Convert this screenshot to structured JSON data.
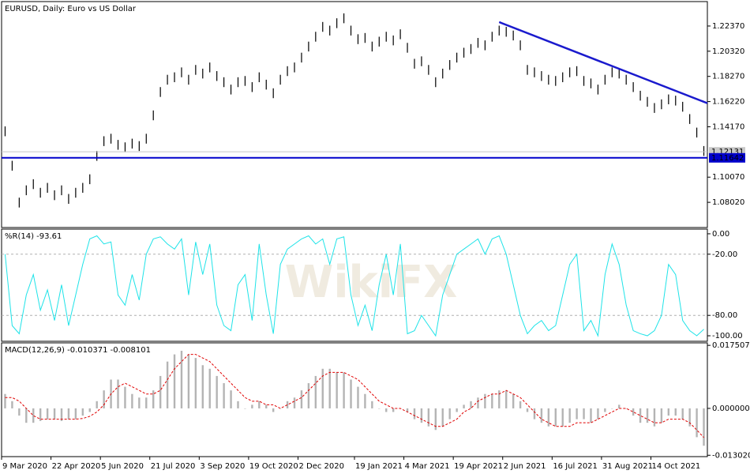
{
  "chart_data": [
    {
      "type": "ohlc",
      "title": "EURUSD, Daily: Euro vs US Dollar",
      "color": "#000000",
      "high": [
        1.142,
        1.114,
        1.084,
        1.094,
        1.099,
        1.092,
        1.096,
        1.09,
        1.094,
        1.087,
        1.092,
        1.096,
        1.103,
        1.122,
        1.134,
        1.136,
        1.131,
        1.129,
        1.132,
        1.13,
        1.136,
        1.155,
        1.174,
        1.184,
        1.186,
        1.19,
        1.184,
        1.192,
        1.189,
        1.194,
        1.187,
        1.182,
        1.176,
        1.182,
        1.183,
        1.178,
        1.186,
        1.18,
        1.173,
        1.184,
        1.191,
        1.194,
        1.202,
        1.211,
        1.219,
        1.227,
        1.224,
        1.23,
        1.234,
        1.224,
        1.217,
        1.218,
        1.211,
        1.215,
        1.219,
        1.216,
        1.221,
        1.21,
        1.197,
        1.199,
        1.192,
        1.182,
        1.189,
        1.196,
        1.202,
        1.206,
        1.209,
        1.214,
        1.212,
        1.219,
        1.224,
        1.223,
        1.22,
        1.212,
        1.192,
        1.19,
        1.187,
        1.184,
        1.183,
        1.186,
        1.19,
        1.191,
        1.183,
        1.181,
        1.176,
        1.184,
        1.19,
        1.189,
        1.184,
        1.178,
        1.171,
        1.166,
        1.161,
        1.164,
        1.168,
        1.167,
        1.162,
        1.152,
        1.141,
        1.126
      ],
      "low": [
        1.134,
        1.106,
        1.076,
        1.086,
        1.091,
        1.084,
        1.088,
        1.082,
        1.086,
        1.079,
        1.084,
        1.088,
        1.095,
        1.114,
        1.126,
        1.128,
        1.123,
        1.121,
        1.124,
        1.122,
        1.128,
        1.147,
        1.166,
        1.176,
        1.178,
        1.182,
        1.176,
        1.184,
        1.181,
        1.186,
        1.179,
        1.174,
        1.168,
        1.174,
        1.175,
        1.17,
        1.178,
        1.172,
        1.165,
        1.176,
        1.183,
        1.186,
        1.194,
        1.203,
        1.211,
        1.219,
        1.216,
        1.222,
        1.226,
        1.216,
        1.209,
        1.21,
        1.203,
        1.207,
        1.211,
        1.208,
        1.213,
        1.202,
        1.189,
        1.191,
        1.184,
        1.174,
        1.181,
        1.188,
        1.194,
        1.198,
        1.201,
        1.206,
        1.204,
        1.211,
        1.216,
        1.215,
        1.212,
        1.204,
        1.184,
        1.182,
        1.179,
        1.176,
        1.175,
        1.178,
        1.182,
        1.183,
        1.175,
        1.173,
        1.168,
        1.176,
        1.182,
        1.181,
        1.176,
        1.17,
        1.163,
        1.158,
        1.153,
        1.156,
        1.16,
        1.159,
        1.154,
        1.144,
        1.133,
        1.118
      ],
      "ylim": [
        1.0597,
        1.2436
      ],
      "yticks": [
        {
          "value": 1.2237,
          "label": "1.22370"
        },
        {
          "value": 1.2032,
          "label": "1.20320"
        },
        {
          "value": 1.1827,
          "label": "1.18270"
        },
        {
          "value": 1.1622,
          "label": "1.16220"
        },
        {
          "value": 1.1417,
          "label": "1.14170"
        },
        {
          "value": 1.1007,
          "label": "1.10070"
        },
        {
          "value": 1.0802,
          "label": "1.08020"
        }
      ],
      "lines": [
        {
          "value": 1.12131,
          "label": "1.12131",
          "color": "#c8c8c8"
        },
        {
          "value": 1.11642,
          "label": "1.11642",
          "color": "#0000cc"
        }
      ],
      "trendline": {
        "start": 70,
        "end": 99,
        "values": [
          1.2269,
          1.1609
        ],
        "color": "#1a1acd"
      }
    },
    {
      "type": "line",
      "title": "%R(14) -93.61",
      "color": "#1ee3e8",
      "watermark": "WikiFX",
      "values": [
        -20,
        -90,
        -98,
        -60,
        -40,
        -75,
        -55,
        -85,
        -50,
        -90,
        -60,
        -30,
        -5,
        -2,
        -10,
        -8,
        -60,
        -70,
        -40,
        -65,
        -20,
        -5,
        -3,
        -10,
        -15,
        -5,
        -60,
        -8,
        -40,
        -10,
        -70,
        -90,
        -95,
        -50,
        -40,
        -85,
        -10,
        -60,
        -98,
        -30,
        -15,
        -10,
        -5,
        -2,
        -10,
        -5,
        -30,
        -5,
        -3,
        -60,
        -90,
        -70,
        -95,
        -50,
        -20,
        -60,
        -10,
        -98,
        -95,
        -80,
        -90,
        -100,
        -60,
        -40,
        -20,
        -15,
        -10,
        -5,
        -20,
        -5,
        -2,
        -20,
        -50,
        -80,
        -98,
        -90,
        -85,
        -95,
        -90,
        -60,
        -30,
        -20,
        -95,
        -85,
        -100,
        -40,
        -10,
        -30,
        -70,
        -95,
        -98,
        -100,
        -95,
        -80,
        -30,
        -40,
        -85,
        -95,
        -100,
        -93.61
      ],
      "ylim": [
        -105.4,
        4.6
      ],
      "yticks": [
        {
          "value": 0,
          "label": "0.00"
        },
        {
          "value": -20,
          "label": "-20.00"
        },
        {
          "value": -80,
          "label": "-80.00"
        },
        {
          "value": -100,
          "label": "-100.00"
        }
      ],
      "levels": [
        -20,
        -80
      ]
    },
    {
      "type": "macd",
      "title": "MACD(12,26,9) -0.010371 -0.008101",
      "histogram": {
        "color": "#b4b4b4",
        "values": [
          0.004,
          0.002,
          -0.002,
          -0.004,
          -0.004,
          -0.0035,
          -0.003,
          -0.003,
          -0.0035,
          -0.003,
          -0.003,
          -0.002,
          -0.001,
          0.002,
          0.005,
          0.008,
          0.008,
          0.006,
          0.004,
          0.003,
          0.003,
          0.005,
          0.009,
          0.013,
          0.015,
          0.016,
          0.015,
          0.014,
          0.012,
          0.011,
          0.009,
          0.007,
          0.005,
          0.002,
          0.0,
          0.001,
          0.002,
          0.001,
          -0.001,
          0.0,
          0.002,
          0.003,
          0.005,
          0.007,
          0.009,
          0.011,
          0.011,
          0.01,
          0.01,
          0.008,
          0.006,
          0.004,
          0.002,
          0.0,
          -0.001,
          -0.001,
          0.0,
          -0.001,
          -0.003,
          -0.004,
          -0.005,
          -0.006,
          -0.005,
          -0.003,
          -0.001,
          0.001,
          0.002,
          0.003,
          0.004,
          0.004,
          0.005,
          0.005,
          0.004,
          0.002,
          -0.001,
          -0.003,
          -0.004,
          -0.005,
          -0.005,
          -0.005,
          -0.004,
          -0.003,
          -0.003,
          -0.004,
          -0.003,
          -0.001,
          0.0,
          0.001,
          0.0,
          -0.002,
          -0.004,
          -0.004,
          -0.005,
          -0.004,
          -0.002,
          -0.002,
          -0.003,
          -0.005,
          -0.008,
          -0.010371
        ]
      },
      "signal": {
        "color": "#e00000",
        "values": [
          0.003,
          0.003,
          0.002,
          0.0,
          -0.002,
          -0.003,
          -0.003,
          -0.003,
          -0.003,
          -0.003,
          -0.003,
          -0.0028,
          -0.0022,
          -0.001,
          0.001,
          0.004,
          0.006,
          0.007,
          0.006,
          0.005,
          0.004,
          0.004,
          0.005,
          0.008,
          0.011,
          0.013,
          0.015,
          0.015,
          0.014,
          0.013,
          0.011,
          0.009,
          0.007,
          0.005,
          0.003,
          0.002,
          0.002,
          0.001,
          0.001,
          0.0,
          0.001,
          0.002,
          0.003,
          0.005,
          0.007,
          0.009,
          0.01,
          0.01,
          0.01,
          0.009,
          0.008,
          0.006,
          0.004,
          0.002,
          0.001,
          0.0,
          0.0,
          -0.001,
          -0.002,
          -0.003,
          -0.004,
          -0.005,
          -0.005,
          -0.004,
          -0.003,
          -0.001,
          0.0,
          0.002,
          0.003,
          0.004,
          0.004,
          0.005,
          0.004,
          0.003,
          0.001,
          -0.001,
          -0.003,
          -0.004,
          -0.005,
          -0.005,
          -0.005,
          -0.004,
          -0.004,
          -0.004,
          -0.003,
          -0.002,
          -0.001,
          0.0,
          0.0,
          -0.001,
          -0.002,
          -0.003,
          -0.004,
          -0.004,
          -0.003,
          -0.003,
          -0.003,
          -0.004,
          -0.006,
          -0.008101
        ]
      },
      "ylim": [
        -0.0134,
        0.0182
      ],
      "yticks": [
        0.017507,
        {
          "value": 0,
          "label": "0.000000"
        },
        {
          "value": -0.01302,
          "label": "-0.013020"
        }
      ],
      "categories": [
        "9 Mar 2020",
        null,
        null,
        null,
        null,
        null,
        null,
        "22 Apr 2020",
        null,
        null,
        null,
        null,
        null,
        null,
        "5 Jun 2020",
        null,
        null,
        null,
        null,
        null,
        null,
        "21 Jul 2020",
        null,
        null,
        null,
        null,
        null,
        null,
        "3 Sep 2020",
        null,
        null,
        null,
        null,
        null,
        null,
        "19 Oct 2020",
        null,
        null,
        null,
        null,
        null,
        null,
        "2 Dec 2020",
        null,
        null,
        null,
        null,
        null,
        null,
        null,
        "19 Jan 2021",
        null,
        null,
        null,
        null,
        null,
        null,
        "4 Mar 2021",
        null,
        null,
        null,
        null,
        null,
        null,
        "19 Apr 2021",
        null,
        null,
        null,
        null,
        null,
        null,
        "2 Jun 2021",
        null,
        null,
        null,
        null,
        null,
        null,
        "16 Jul 2021",
        null,
        null,
        null,
        null,
        null,
        null,
        "31 Aug 2021",
        null,
        null,
        null,
        null,
        null,
        null,
        "14 Oct 2021",
        null,
        null,
        null,
        null,
        null,
        null,
        null
      ]
    }
  ]
}
